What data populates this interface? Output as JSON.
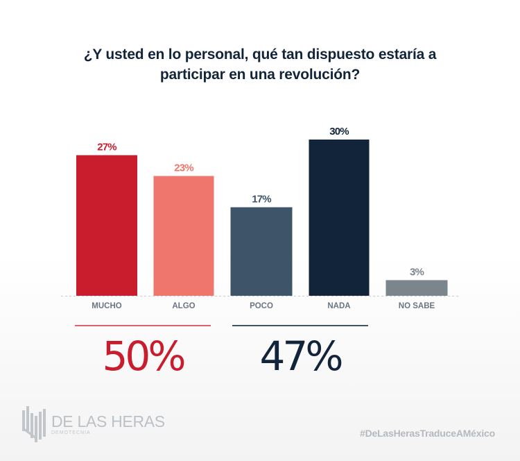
{
  "title_lines": [
    "¿Y usted en lo personal, qué tan dispuesto estaría a",
    "participar en una revolución?"
  ],
  "chart_data": {
    "type": "bar",
    "title": "¿Y usted en lo personal, qué tan dispuesto estaría a participar en una revolución?",
    "categories": [
      "MUCHO",
      "ALGO",
      "POCO",
      "NADA",
      "NO SABE"
    ],
    "values": [
      27,
      23,
      17,
      30,
      3
    ],
    "value_labels": [
      "27%",
      "23%",
      "17%",
      "30%",
      "3%"
    ],
    "colors": [
      "#c91d2e",
      "#ee766d",
      "#3e5468",
      "#12243a",
      "#7b858c"
    ],
    "label_colors": [
      "#c91d2e",
      "#ee766d",
      "#3e5468",
      "#12243a",
      "#7b858c"
    ],
    "xlabel": "",
    "ylabel": "",
    "ylim": [
      0,
      30
    ],
    "grid": false,
    "baseline": "dashed"
  },
  "summary": [
    {
      "value": "50%",
      "color": "#c91d2e",
      "rule_color": "#e0606a"
    },
    {
      "value": "47%",
      "color": "#12243a",
      "rule_color": "#3e5468"
    }
  ],
  "footer": {
    "logo_name": "DE LAS HERAS",
    "logo_sub": "DEMOTECNIA",
    "hashtag": "#DeLasHerasTraduceAMéxico"
  }
}
